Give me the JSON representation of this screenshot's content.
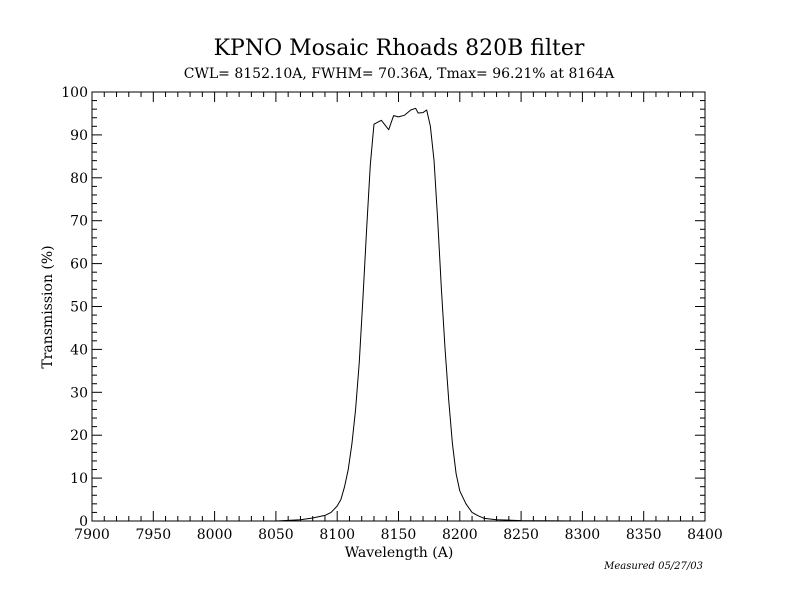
{
  "chart_data": {
    "type": "line",
    "title": "KPNO Mosaic Rhoads 820B filter",
    "subtitle": "CWL= 8152.10A, FWHM= 70.36A, Tmax= 96.21% at 8164A",
    "xlabel": "Wavelength (A)",
    "ylabel": "Transmission (%)",
    "xlim": [
      7900,
      8400
    ],
    "ylim": [
      0,
      100
    ],
    "xticks": [
      7900,
      7950,
      8000,
      8050,
      8100,
      8150,
      8200,
      8250,
      8300,
      8350,
      8400
    ],
    "yticks": [
      0,
      10,
      20,
      30,
      40,
      50,
      60,
      70,
      80,
      90,
      100
    ],
    "grid": false,
    "annotation": "Measured 05/27/03",
    "series": [
      {
        "x": [
          7900,
          7950,
          8000,
          8050,
          8070,
          8080,
          8090,
          8095,
          8100,
          8103,
          8106,
          8109,
          8112,
          8115,
          8118,
          8121,
          8124,
          8127,
          8130,
          8136,
          8142,
          8146,
          8150,
          8155,
          8160,
          8164,
          8166,
          8170,
          8173,
          8176,
          8179,
          8182,
          8185,
          8188,
          8191,
          8194,
          8197,
          8200,
          8205,
          8210,
          8215,
          8220,
          8230,
          8250,
          8300,
          8350,
          8400
        ],
        "y": [
          0,
          0,
          0,
          0,
          0.3,
          0.7,
          1.3,
          2.0,
          3.5,
          5,
          8,
          12,
          18,
          26,
          37,
          52,
          68,
          83,
          92.5,
          93.4,
          91.2,
          94.5,
          94.2,
          94.6,
          95.8,
          96.2,
          95.1,
          95.2,
          95.8,
          92,
          84,
          70,
          54,
          40,
          28,
          18,
          11,
          7,
          4,
          2,
          1.2,
          0.6,
          0.3,
          0.1,
          0,
          0,
          0
        ]
      }
    ]
  }
}
